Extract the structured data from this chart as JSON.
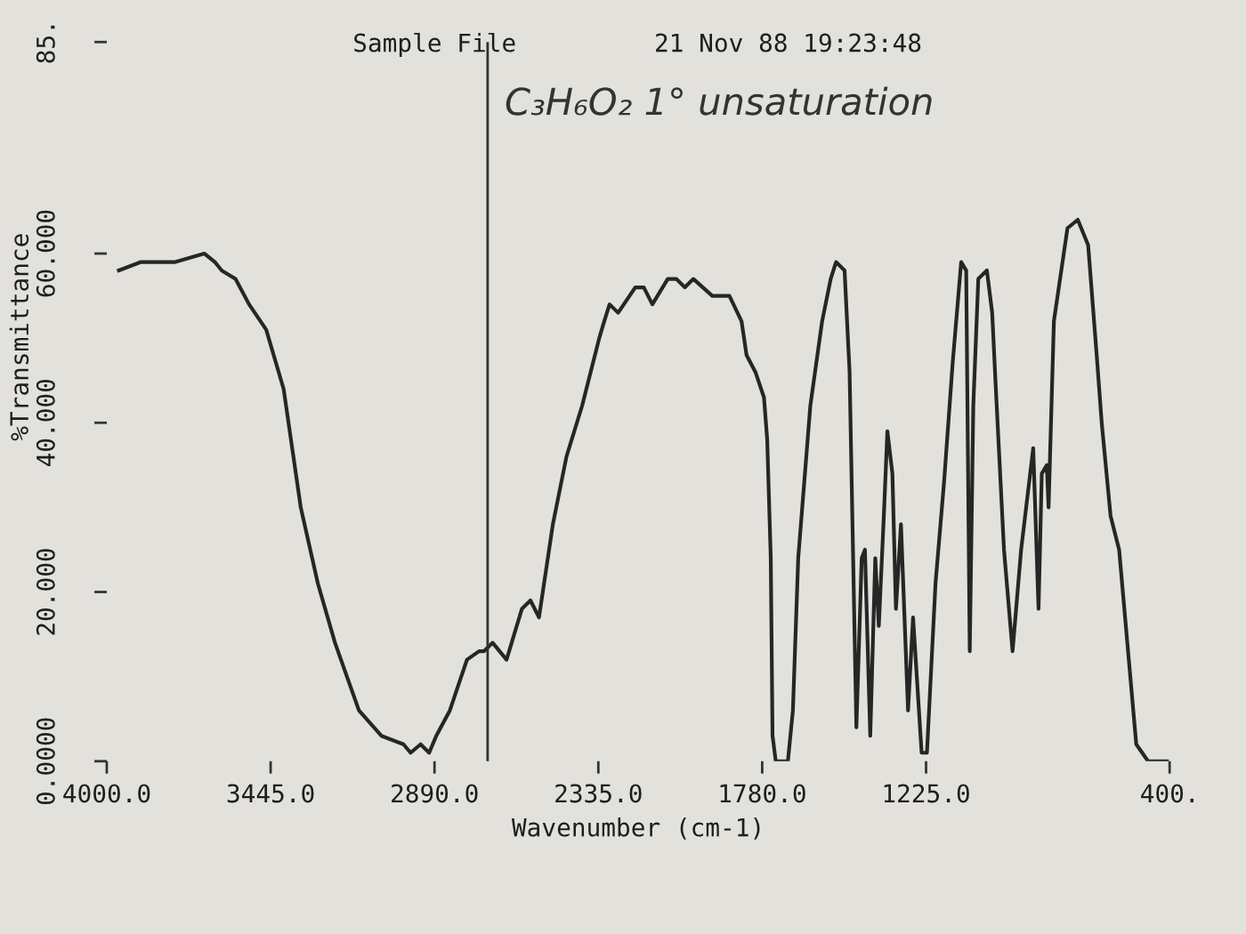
{
  "chart_data": {
    "type": "line",
    "title": "Sample File",
    "subtitle": "21 Nov 88 19:23:48",
    "annotations": [
      "C₃H₆O₂ 1° unsaturation"
    ],
    "xlabel": "Wavenumber (cm-1)",
    "ylabel": "%Transmittance",
    "xlim": [
      4000,
      400
    ],
    "ylim": [
      0,
      85
    ],
    "xticks": [
      {
        "value": 4000,
        "label": "4000.0"
      },
      {
        "value": 3445,
        "label": "3445.0"
      },
      {
        "value": 2890,
        "label": "2890.0"
      },
      {
        "value": 2335,
        "label": "2335.0"
      },
      {
        "value": 1780,
        "label": "1780.0"
      },
      {
        "value": 1225,
        "label": "1225.0"
      },
      {
        "value": 400,
        "label": "400."
      }
    ],
    "yticks": [
      {
        "value": 0,
        "label": "0.0000"
      },
      {
        "value": 20,
        "label": "20.000"
      },
      {
        "value": 40,
        "label": "40.000"
      },
      {
        "value": 60,
        "label": "60.000"
      },
      {
        "value": 85,
        "label": "85."
      }
    ],
    "marker": "none",
    "line_style": "solid",
    "ref_lines": [
      {
        "axis": "x",
        "value": 2710,
        "color": "#303030"
      }
    ],
    "series": [
      {
        "color": "#262626",
        "x": [
          3959,
          3884,
          3768,
          3669,
          3634,
          3611,
          3564,
          3518,
          3460,
          3401,
          3343,
          3285,
          3227,
          3146,
          3070,
          2995,
          2971,
          2937,
          2908,
          2884,
          2838,
          2780,
          2739,
          2722,
          2693,
          2646,
          2594,
          2565,
          2536,
          2489,
          2443,
          2390,
          2332,
          2315,
          2297,
          2268,
          2210,
          2181,
          2152,
          2100,
          2071,
          2042,
          2013,
          1949,
          1891,
          1850,
          1833,
          1803,
          1774,
          1763,
          1751,
          1745,
          1734,
          1693,
          1676,
          1658,
          1617,
          1577,
          1548,
          1530,
          1501,
          1484,
          1472,
          1461,
          1443,
          1432,
          1414,
          1397,
          1385,
          1368,
          1356,
          1339,
          1327,
          1310,
          1286,
          1269,
          1240,
          1222,
          1193,
          1164,
          1135,
          1106,
          1089,
          1077,
          1065,
          1048,
          1019,
          1001,
          990,
          961,
          932,
          903,
          862,
          844,
          833,
          816,
          810,
          792,
          746,
          711,
          676,
          647,
          630,
          600,
          571,
          513,
          473,
          426,
          409
        ],
        "values": [
          58,
          59,
          59,
          60,
          59,
          58,
          57,
          54,
          51,
          44,
          30,
          21,
          14,
          6,
          3,
          2,
          1,
          2,
          1,
          3,
          6,
          12,
          13,
          13,
          14,
          12,
          18,
          19,
          17,
          28,
          36,
          42,
          50,
          52,
          54,
          53,
          56,
          56,
          54,
          57,
          57,
          56,
          57,
          55,
          55,
          52,
          48,
          46,
          43,
          38,
          24,
          3,
          0,
          0,
          6,
          24,
          42,
          52,
          57,
          59,
          58,
          46,
          24,
          4,
          24,
          25,
          3,
          24,
          16,
          29,
          39,
          34,
          18,
          28,
          6,
          17,
          1,
          1,
          21,
          33,
          47,
          59,
          58,
          13,
          42,
          57,
          58,
          53,
          45,
          25,
          13,
          25,
          37,
          18,
          34,
          35,
          30,
          52,
          63,
          64,
          61,
          48,
          40,
          29,
          25,
          2,
          0,
          0,
          0
        ]
      }
    ]
  }
}
